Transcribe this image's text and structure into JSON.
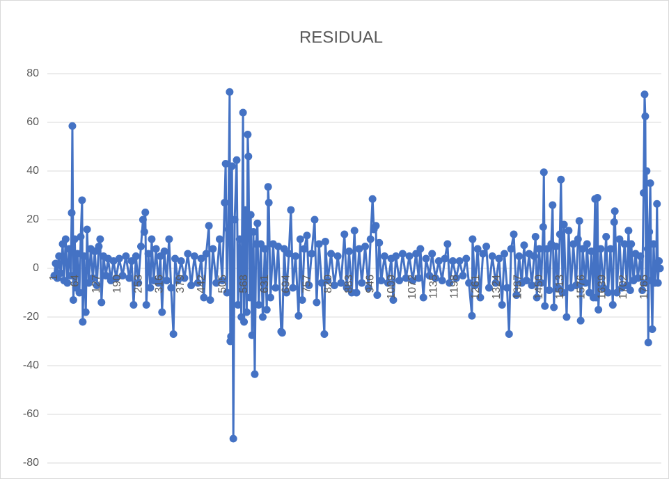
{
  "chart_data": {
    "type": "line",
    "title": "RESIDUAL",
    "color": "#4472c4",
    "grid": true,
    "xlim": [
      1,
      1815
    ],
    "xticks": [
      1,
      64,
      127,
      190,
      253,
      316,
      379,
      442,
      505,
      568,
      631,
      694,
      757,
      820,
      883,
      946,
      1009,
      1072,
      1135,
      1198,
      1261,
      1324,
      1387,
      1450,
      1513,
      1576,
      1639,
      1702,
      1765
    ],
    "ylim": [
      -80,
      80
    ],
    "yticks": [
      -80,
      -60,
      -40,
      -20,
      0,
      20,
      40,
      60,
      80
    ],
    "x": [
      1,
      5,
      10,
      15,
      20,
      26,
      30,
      35,
      40,
      45,
      50,
      53,
      55,
      58,
      62,
      66,
      70,
      76,
      80,
      84,
      86,
      90,
      95,
      99,
      104,
      110,
      116,
      122,
      128,
      134,
      138,
      142,
      148,
      155,
      162,
      170,
      178,
      186,
      195,
      205,
      215,
      225,
      232,
      238,
      245,
      252,
      260,
      266,
      270,
      273,
      276,
      282,
      288,
      292,
      298,
      305,
      312,
      318,
      323,
      330,
      337,
      344,
      350,
      357,
      362,
      370,
      380,
      390,
      400,
      410,
      420,
      430,
      440,
      448,
      455,
      463,
      467,
      475,
      485,
      495,
      503,
      510,
      513,
      517,
      521,
      525,
      527,
      529,
      532,
      536,
      540,
      546,
      550,
      555,
      560,
      565,
      568,
      572,
      576,
      579,
      581,
      585,
      588,
      592,
      596,
      600,
      604,
      608,
      612,
      618,
      624,
      630,
      636,
      640,
      642,
      647,
      655,
      662,
      670,
      679,
      682,
      688,
      695,
      702,
      708,
      714,
      722,
      731,
      736,
      742,
      748,
      756,
      762,
      770,
      779,
      785,
      792,
      800,
      808,
      811,
      818,
      828,
      838,
      848,
      858,
      868,
      875,
      882,
      890,
      898,
      904,
      912,
      920,
      930,
      940,
      946,
      952,
      956,
      962,
      966,
      972,
      978,
      988,
      998,
      1008,
      1014,
      1022,
      1032,
      1042,
      1052,
      1062,
      1072,
      1082,
      1090,
      1095,
      1104,
      1112,
      1122,
      1130,
      1140,
      1150,
      1160,
      1168,
      1176,
      1182,
      1192,
      1202,
      1212,
      1222,
      1232,
      1240,
      1249,
      1251,
      1258,
      1266,
      1274,
      1282,
      1292,
      1300,
      1310,
      1320,
      1330,
      1339,
      1346,
      1354,
      1360,
      1366,
      1374,
      1382,
      1390,
      1398,
      1405,
      1412,
      1420,
      1428,
      1435,
      1439,
      1443,
      1450,
      1456,
      1462,
      1464,
      1467,
      1474,
      1480,
      1486,
      1490,
      1494,
      1500,
      1506,
      1512,
      1515,
      1520,
      1524,
      1532,
      1538,
      1545,
      1552,
      1560,
      1566,
      1570,
      1574,
      1580,
      1588,
      1593,
      1600,
      1606,
      1612,
      1617,
      1620,
      1624,
      1627,
      1634,
      1642,
      1650,
      1656,
      1663,
      1670,
      1674,
      1676,
      1682,
      1690,
      1697,
      1705,
      1712,
      1717,
      1722,
      1725,
      1732,
      1738,
      1745,
      1752,
      1758,
      1762,
      1765,
      1767,
      1769,
      1771,
      1774,
      1776,
      1779,
      1782,
      1785,
      1788,
      1792,
      1796,
      1800,
      1802,
      1805,
      1808,
      1811
    ],
    "values": [
      -3,
      2,
      -4,
      5,
      -2,
      10,
      -5,
      12,
      -6,
      8,
      -3,
      22.8,
      58.5,
      -13,
      12,
      -8,
      6,
      -10,
      13,
      28,
      -22,
      5,
      -18,
      16,
      -6,
      8,
      -4,
      7,
      -7,
      9,
      12,
      -14,
      5,
      -3,
      4,
      -5,
      3,
      -4,
      4,
      -3,
      5,
      -4,
      3,
      -15,
      5,
      -6,
      9,
      20,
      15,
      23,
      -15,
      6,
      -8,
      12,
      -5,
      8,
      -6,
      5,
      -18,
      7,
      -5,
      12,
      -8,
      -27,
      4,
      -5,
      3,
      -4,
      6,
      -7,
      5,
      -6,
      4,
      -12,
      6,
      17.5,
      -13,
      8,
      -6,
      12,
      -5,
      27,
      43,
      -10,
      16,
      72.5,
      -30,
      -28,
      42,
      -70,
      20,
      44.5,
      -15,
      12,
      -20,
      64,
      -22,
      24,
      -18,
      55,
      46,
      -12,
      22,
      -27.5,
      15,
      -43.5,
      10,
      18.5,
      -15,
      10,
      -20,
      8,
      -17,
      33.5,
      27,
      -12,
      10,
      -8,
      9,
      -26,
      -26.5,
      8,
      -10,
      6,
      24,
      -8,
      5,
      -19.5,
      12,
      -13,
      8,
      13.5,
      -7,
      6,
      20,
      -14,
      10,
      -6,
      -27,
      11,
      -5,
      6,
      -7,
      5,
      -6,
      14,
      -8,
      7,
      -10,
      15.5,
      -10,
      8,
      -6,
      9,
      -8,
      12,
      28.5,
      16,
      17.5,
      -11,
      10.5,
      -5,
      5,
      -6,
      4,
      -13,
      5,
      -5,
      6,
      -4,
      5,
      -5,
      6,
      -4,
      8,
      -12,
      4,
      -3,
      6,
      -4,
      3,
      -5,
      4,
      10,
      -6,
      3,
      -4,
      3,
      -3,
      4,
      -6,
      -19.5,
      12,
      -7,
      8,
      -12,
      6,
      9,
      -8,
      5,
      -6,
      4,
      -15,
      6,
      -8,
      -27,
      8,
      14,
      -11,
      5,
      -6,
      9.5,
      -5,
      6,
      -7,
      5,
      13,
      -12,
      8,
      -6,
      17,
      39.5,
      -15.5,
      8,
      -9,
      10,
      26,
      -16,
      9,
      -8,
      14,
      36.5,
      -10,
      18,
      -20,
      15.5,
      -8,
      10,
      -7,
      12,
      19.5,
      -21.5,
      8,
      -6,
      10,
      -10,
      7,
      -12,
      28.5,
      -12,
      29,
      -17,
      8,
      -8,
      13,
      -10,
      8,
      -15,
      19,
      23.5,
      -10,
      12,
      -8,
      10,
      -7,
      15.5,
      -9,
      10,
      -5,
      6,
      -4,
      5,
      -9,
      31,
      71.5,
      62.5,
      -6,
      40,
      8,
      -30.5,
      15,
      35,
      -5,
      -25,
      10,
      -6,
      2,
      26.5,
      -6,
      3,
      0
    ]
  }
}
